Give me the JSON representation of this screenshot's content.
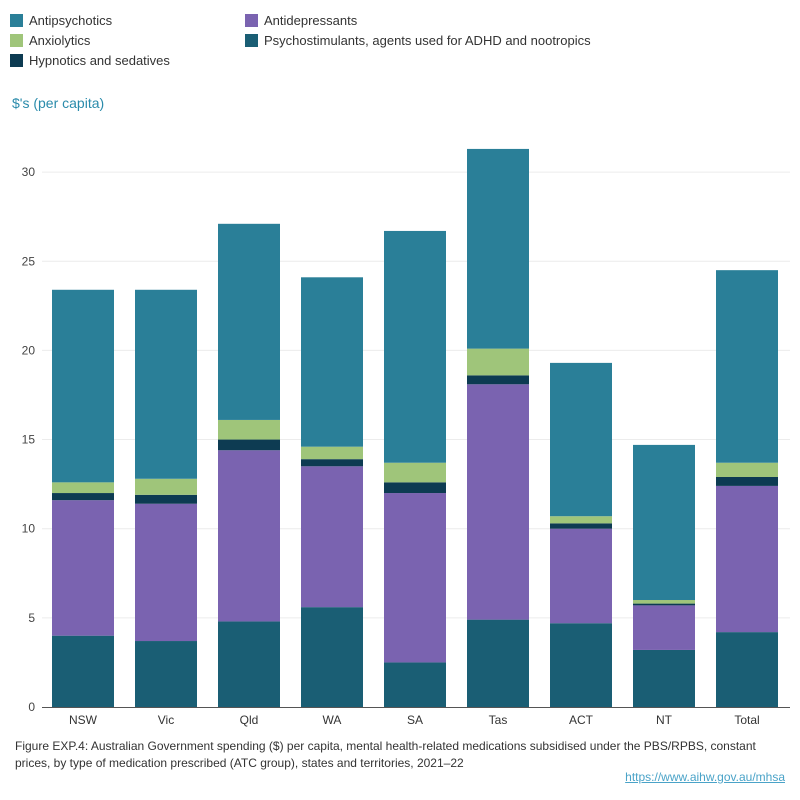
{
  "chart_data": {
    "type": "bar",
    "stacked": true,
    "ylabel": "$'s (per capita)",
    "ylim": [
      0,
      33
    ],
    "yticks": [
      0,
      5,
      10,
      15,
      20,
      25,
      30
    ],
    "grid": true,
    "legend_position": "top",
    "categories": [
      "NSW",
      "Vic",
      "Qld",
      "WA",
      "SA",
      "Tas",
      "ACT",
      "NT",
      "Total"
    ],
    "series": [
      {
        "name": "Psychostimulants, agents used for ADHD and nootropics",
        "color": "#1a5e74",
        "values": [
          4.0,
          3.7,
          4.8,
          5.6,
          2.5,
          4.9,
          4.7,
          3.2,
          4.2
        ]
      },
      {
        "name": "Antidepressants",
        "color": "#7a63b0",
        "values": [
          7.6,
          7.7,
          9.6,
          7.9,
          9.5,
          13.2,
          5.3,
          2.5,
          8.2
        ]
      },
      {
        "name": "Hypnotics and sedatives",
        "color": "#0d3b52",
        "values": [
          0.4,
          0.5,
          0.6,
          0.4,
          0.6,
          0.5,
          0.3,
          0.1,
          0.5
        ]
      },
      {
        "name": "Anxiolytics",
        "color": "#9fc57a",
        "values": [
          0.6,
          0.9,
          1.1,
          0.7,
          1.1,
          1.5,
          0.4,
          0.2,
          0.8
        ]
      },
      {
        "name": "Antipsychotics",
        "color": "#2a7f98",
        "values": [
          10.8,
          10.6,
          11.0,
          9.5,
          13.0,
          11.2,
          8.6,
          8.7,
          10.8
        ]
      }
    ]
  },
  "legend": [
    {
      "label": "Antipsychotics",
      "color": "#2a7f98"
    },
    {
      "label": "Antidepressants",
      "color": "#7a63b0"
    },
    {
      "label": "Anxiolytics",
      "color": "#9fc57a"
    },
    {
      "label": "Psychostimulants, agents used for ADHD and nootropics",
      "color": "#1a5e74"
    },
    {
      "label": "Hypnotics and sedatives",
      "color": "#0d3b52"
    }
  ],
  "caption": "Figure EXP.4: Australian Government spending ($) per capita, mental health-related medications subsidised under the PBS/RPBS, constant prices, by type of medication prescribed (ATC group), states and territories, 2021–22",
  "source_link": "https://www.aihw.gov.au/mhsa"
}
